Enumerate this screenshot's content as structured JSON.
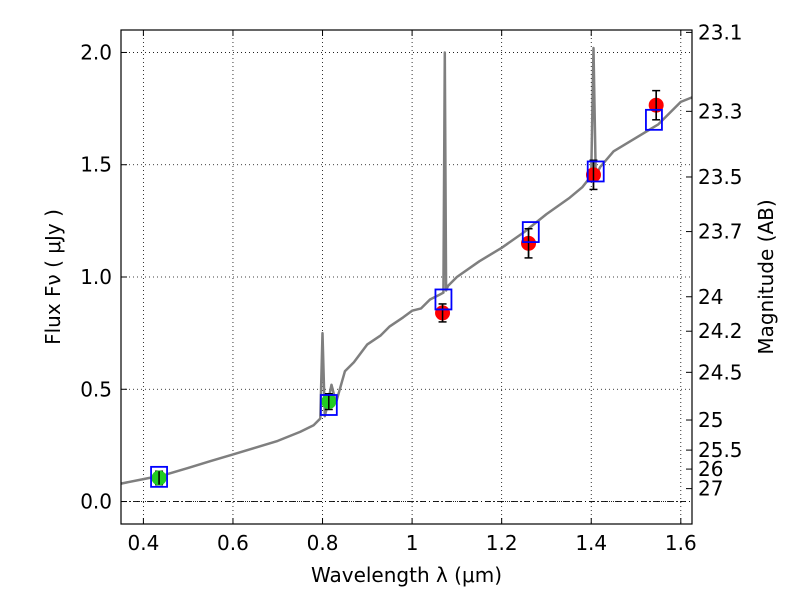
{
  "chart_data": {
    "type": "scatter",
    "title": "",
    "xlabel": "Wavelength  λ (μm)",
    "ylabel": "Flux  Fν  ( μJy )",
    "y2label": "Magnitude (AB)",
    "xlim": [
      0.35,
      1.625
    ],
    "ylim": [
      -0.1,
      2.1
    ],
    "grid": true,
    "x_ticks": [
      0.4,
      0.6,
      0.8,
      1.0,
      1.2,
      1.4,
      1.6
    ],
    "x_tick_labels": [
      "0.4",
      "0.6",
      "0.8",
      "1",
      "1.2",
      "1.4",
      "1.6"
    ],
    "y_ticks": [
      0.0,
      0.5,
      1.0,
      1.5,
      2.0
    ],
    "y_tick_labels": [
      "0.0",
      "0.5",
      "1.0",
      "1.5",
      "2.0"
    ],
    "magnitude_ticks": [
      23.1,
      23.3,
      23.5,
      23.7,
      24,
      24.2,
      24.5,
      25,
      25.5,
      26,
      27
    ],
    "magnitude_tick_labels": [
      "23.1",
      "23.3",
      "23.5",
      "23.7",
      "24",
      "24.2",
      "24.5",
      "25",
      "25.5",
      "26",
      "27"
    ],
    "series": [
      {
        "type": "line",
        "color": "#7f7f7f",
        "x": [
          0.35,
          0.4,
          0.45,
          0.5,
          0.55,
          0.6,
          0.65,
          0.7,
          0.75,
          0.78,
          0.795,
          0.8,
          0.805,
          0.81,
          0.82,
          0.83,
          0.85,
          0.87,
          0.9,
          0.93,
          0.95,
          0.98,
          1.0,
          1.02,
          1.04,
          1.06,
          1.07,
          1.073,
          1.076,
          1.08,
          1.1,
          1.15,
          1.2,
          1.25,
          1.3,
          1.35,
          1.38,
          1.4,
          1.405,
          1.41,
          1.415,
          1.42,
          1.45,
          1.5,
          1.55,
          1.6,
          1.625
        ],
        "y": [
          0.08,
          0.1,
          0.12,
          0.15,
          0.18,
          0.21,
          0.24,
          0.27,
          0.31,
          0.34,
          0.37,
          0.75,
          0.38,
          0.42,
          0.52,
          0.44,
          0.58,
          0.62,
          0.7,
          0.74,
          0.78,
          0.82,
          0.85,
          0.86,
          0.9,
          0.92,
          0.93,
          2.0,
          0.94,
          0.96,
          1.0,
          1.07,
          1.13,
          1.2,
          1.28,
          1.35,
          1.4,
          1.45,
          2.02,
          1.46,
          1.47,
          1.49,
          1.56,
          1.62,
          1.68,
          1.78,
          1.8
        ]
      },
      {
        "type": "scatter",
        "color": "#22cc22",
        "marker": "circle",
        "x": [
          0.435,
          0.814
        ],
        "y": [
          0.105,
          0.445
        ],
        "yerr": [
          0.03,
          0.035
        ]
      },
      {
        "type": "scatter",
        "color": "#ff0000",
        "marker": "circle",
        "x": [
          1.068,
          1.26,
          1.405,
          1.545
        ],
        "y": [
          0.84,
          1.15,
          1.455,
          1.765
        ],
        "yerr": [
          0.04,
          0.065,
          0.065,
          0.065
        ]
      },
      {
        "type": "scatter",
        "color": "#0000ff",
        "marker": "open-square",
        "x": [
          0.435,
          0.814,
          1.07,
          1.265,
          1.41,
          1.54
        ],
        "y": [
          0.11,
          0.43,
          0.9,
          1.2,
          1.47,
          1.7
        ]
      }
    ]
  }
}
